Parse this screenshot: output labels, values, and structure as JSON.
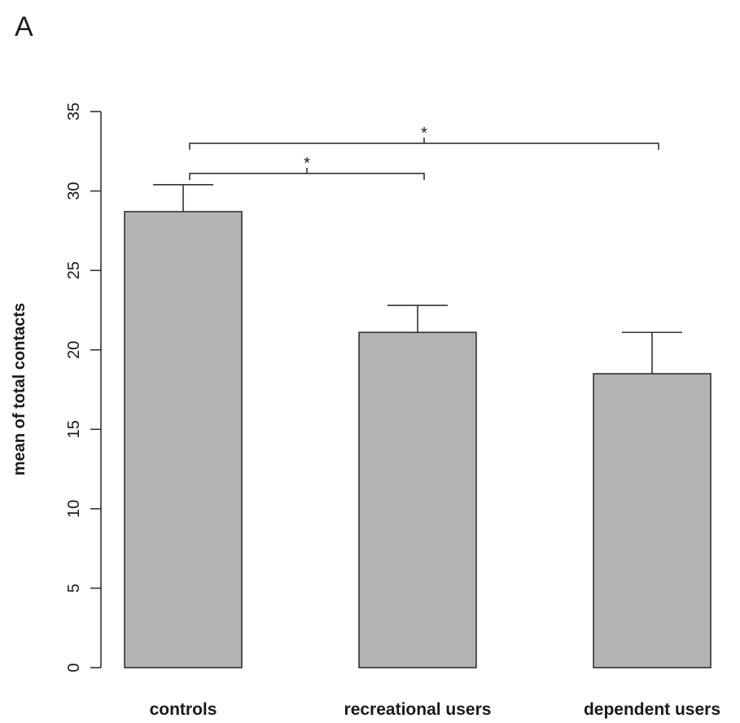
{
  "panel_label": "A",
  "chart_data": {
    "type": "bar",
    "categories": [
      "controls",
      "recreational users",
      "dependent users"
    ],
    "values": [
      28.7,
      21.1,
      18.5
    ],
    "error_upper": [
      30.4,
      22.8,
      21.1
    ],
    "ylabel": "mean of total contacts",
    "xlabel": "",
    "ylim": [
      0,
      35
    ],
    "yticks": [
      "0",
      "5",
      "10",
      "15",
      "20",
      "25",
      "30",
      "35"
    ],
    "bar_color": "#b3b3b3",
    "grid": false,
    "significance": [
      {
        "from": 0,
        "to": 1,
        "y": 31.1,
        "label": "*"
      },
      {
        "from": 0,
        "to": 2,
        "y": 33.0,
        "label": "*"
      }
    ]
  }
}
